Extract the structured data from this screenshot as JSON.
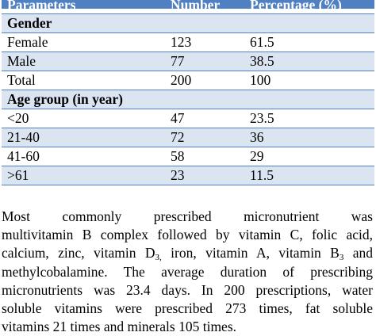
{
  "table": {
    "headers": [
      "Parameters",
      "Number",
      "Percentage (%)"
    ],
    "sections": [
      {
        "title": "Gender",
        "rows": [
          [
            "Female",
            "123",
            "61.5"
          ],
          [
            "Male",
            "77",
            "38.5"
          ],
          [
            "Total",
            "200",
            "100"
          ]
        ]
      },
      {
        "title": "Age group (in year)",
        "rows": [
          [
            "<20",
            "47",
            "23.5"
          ],
          [
            "21-40",
            "72",
            "36"
          ],
          [
            "41-60",
            "58",
            "29"
          ],
          [
            ">61",
            "23",
            "11.5"
          ]
        ]
      }
    ]
  },
  "paragraph": {
    "line1": "Most commonly prescribed micronutrient was",
    "line2": "multivitamin B complex followed by vitamin C, folic acid,",
    "line3_a": "calcium, zinc, vitamin D",
    "line3_sub1": "3,",
    "line3_b": " iron, vitamin A, vitamin B",
    "line3_sub2": "3",
    "line3_c": " and",
    "line4": "methylcobalamine. The average duration of prescribing",
    "line5": "micronutrients was 23.4 days. In 200 prescriptions, water",
    "line6": "soluble vitamins were prescribed 273 times, fat soluble",
    "line7": "vitamins 21 times and minerals 105 times."
  },
  "colors": {
    "header_bg": "#4e80c2",
    "shade_bg": "#dbe5f1",
    "rule": "#4e80c2"
  }
}
